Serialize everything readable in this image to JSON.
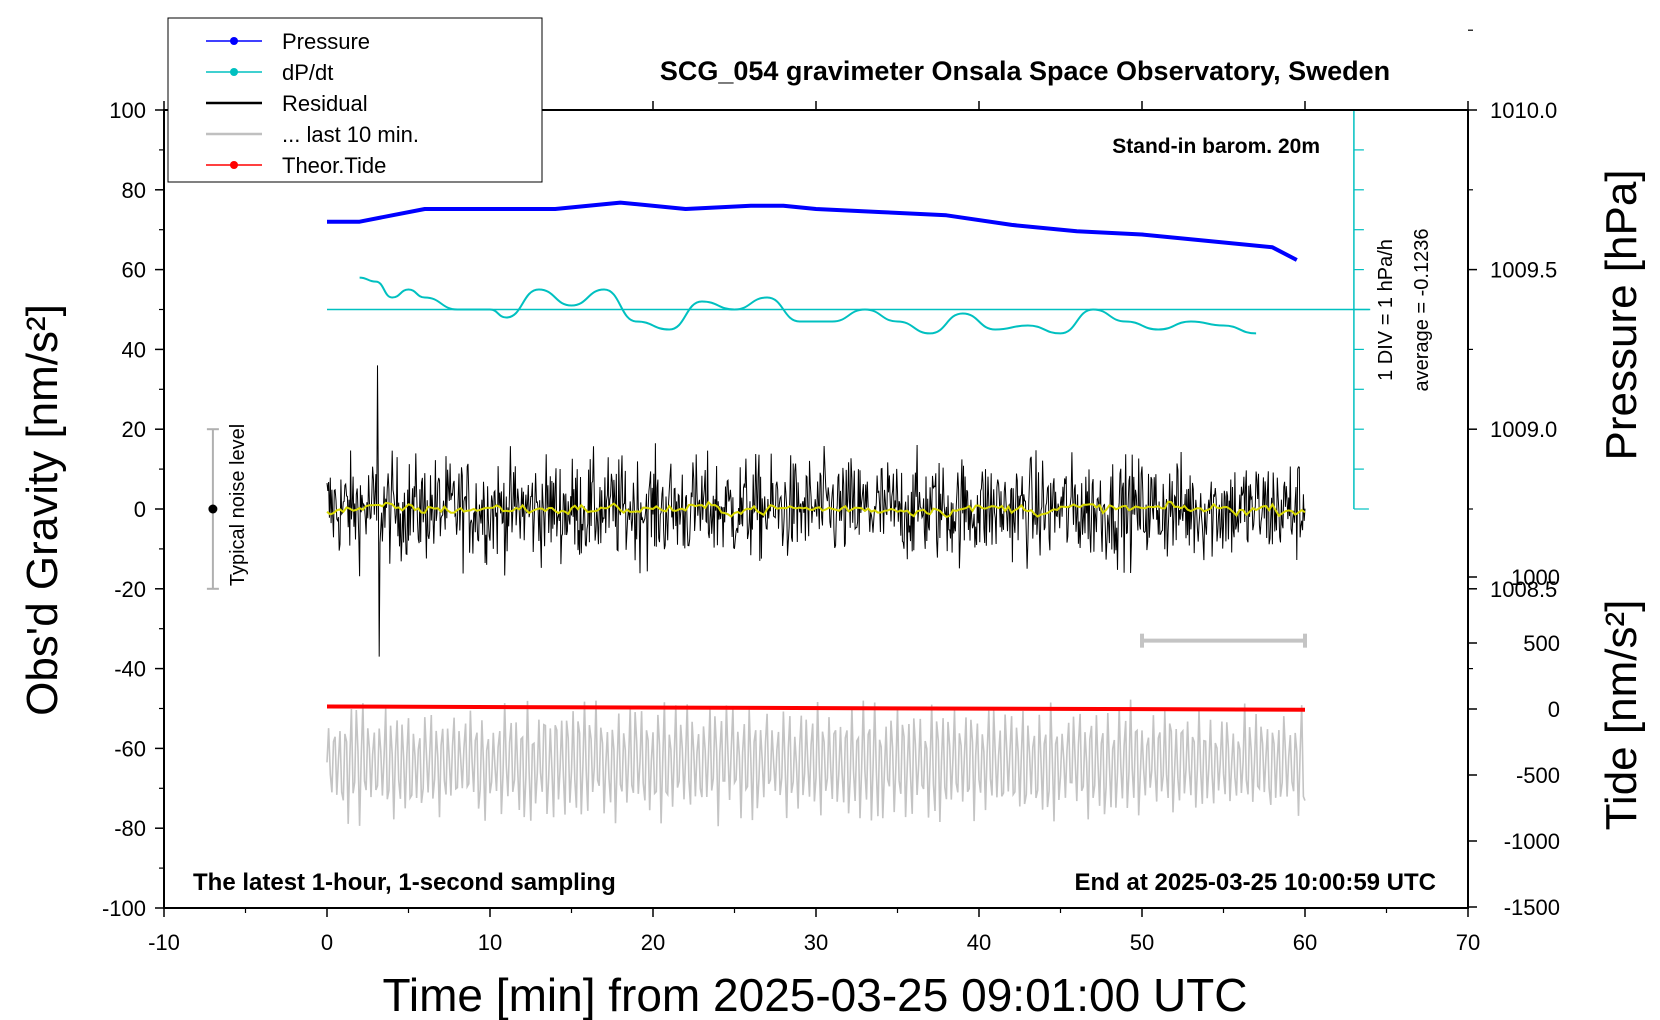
{
  "title": "SCG_054 gravimeter Onsala Space Observatory, Sweden",
  "subtitle_tr": "Stand-in barom. 20m",
  "note_bl": "The latest 1-hour, 1-second sampling",
  "note_br": "End at 2025-03-25 10:00:59 UTC",
  "div_note": "1 DIV = 1 hPa/h",
  "avg_note": "average = -0.1236",
  "noise_label": "Typical noise level",
  "legend": [
    {
      "label": "Pressure",
      "color": "#0000ff",
      "marker": "dot"
    },
    {
      "label": "dP/dt",
      "color": "#00c0c0",
      "marker": "dot"
    },
    {
      "label": "Residual",
      "color": "#000000",
      "marker": "none"
    },
    {
      "label": "... last 10 min.",
      "color": "#c0c0c0",
      "marker": "none"
    },
    {
      "label": "Theor.Tide",
      "color": "#ff0000",
      "marker": "dot"
    }
  ],
  "chart_data": {
    "type": "line",
    "title": "SCG_054 gravimeter Onsala Space Observatory, Sweden",
    "xlabel": "Time [min] from 2025-03-25 09:01:00 UTC",
    "ylabel_left": "Obs'd Gravity [nm/s²]",
    "ylabel_right_top": "Pressure [hPa]",
    "ylabel_right_bottom": "Tide [nm/s²]",
    "xlim": [
      -10,
      70
    ],
    "ylim": [
      -100,
      100
    ],
    "xticks": [
      "-10",
      "0",
      "10",
      "20",
      "30",
      "40",
      "50",
      "60",
      "70"
    ],
    "yticks": [
      "-100",
      "-80",
      "-60",
      "-40",
      "-20",
      "0",
      "20",
      "40",
      "60",
      "80",
      "100"
    ],
    "pressure_ticks": [
      "1010.0",
      "1009.5",
      "1009.0",
      "1008.5"
    ],
    "tide_ticks": [
      "1000",
      "500",
      "0",
      "-500",
      "-1000",
      "-1500"
    ],
    "noise_level_range": [
      -20,
      20
    ],
    "series": [
      {
        "name": "Pressure (hPa)",
        "x": [
          0,
          2,
          4,
          6,
          10,
          14,
          18,
          22,
          26,
          28,
          30,
          34,
          38,
          42,
          46,
          50,
          54,
          58,
          59.5
        ],
        "values": [
          1009.65,
          1009.65,
          1009.67,
          1009.69,
          1009.69,
          1009.69,
          1009.71,
          1009.69,
          1009.7,
          1009.7,
          1009.69,
          1009.68,
          1009.67,
          1009.64,
          1009.62,
          1009.61,
          1009.59,
          1009.57,
          1009.53
        ]
      },
      {
        "name": "dP/dt (gravity-axis units)",
        "x": [
          2,
          3,
          4,
          5,
          6,
          8,
          10,
          11,
          13,
          15,
          17,
          19,
          21,
          23,
          25,
          27,
          29,
          31,
          33,
          35,
          37,
          39,
          41,
          43,
          45,
          47,
          49,
          51,
          53,
          55,
          57
        ],
        "values": [
          58,
          57,
          53,
          55,
          53,
          50,
          50,
          48,
          55,
          51,
          55,
          47,
          45,
          52,
          50,
          53,
          47,
          47,
          50,
          47,
          44,
          49,
          45,
          46,
          44,
          50,
          47,
          45,
          47,
          46,
          44
        ]
      },
      {
        "name": "Residual",
        "x": [
          0,
          60
        ],
        "envelope": [
          -20,
          20
        ],
        "extremes": [
          -37,
          36
        ]
      },
      {
        "name": "... last 10 min.",
        "x": [
          0,
          60
        ],
        "envelope": [
          -85,
          -42
        ]
      },
      {
        "name": "Theor.Tide",
        "x": [
          0,
          60
        ],
        "values": [
          -49.5,
          -50.3
        ]
      }
    ]
  }
}
